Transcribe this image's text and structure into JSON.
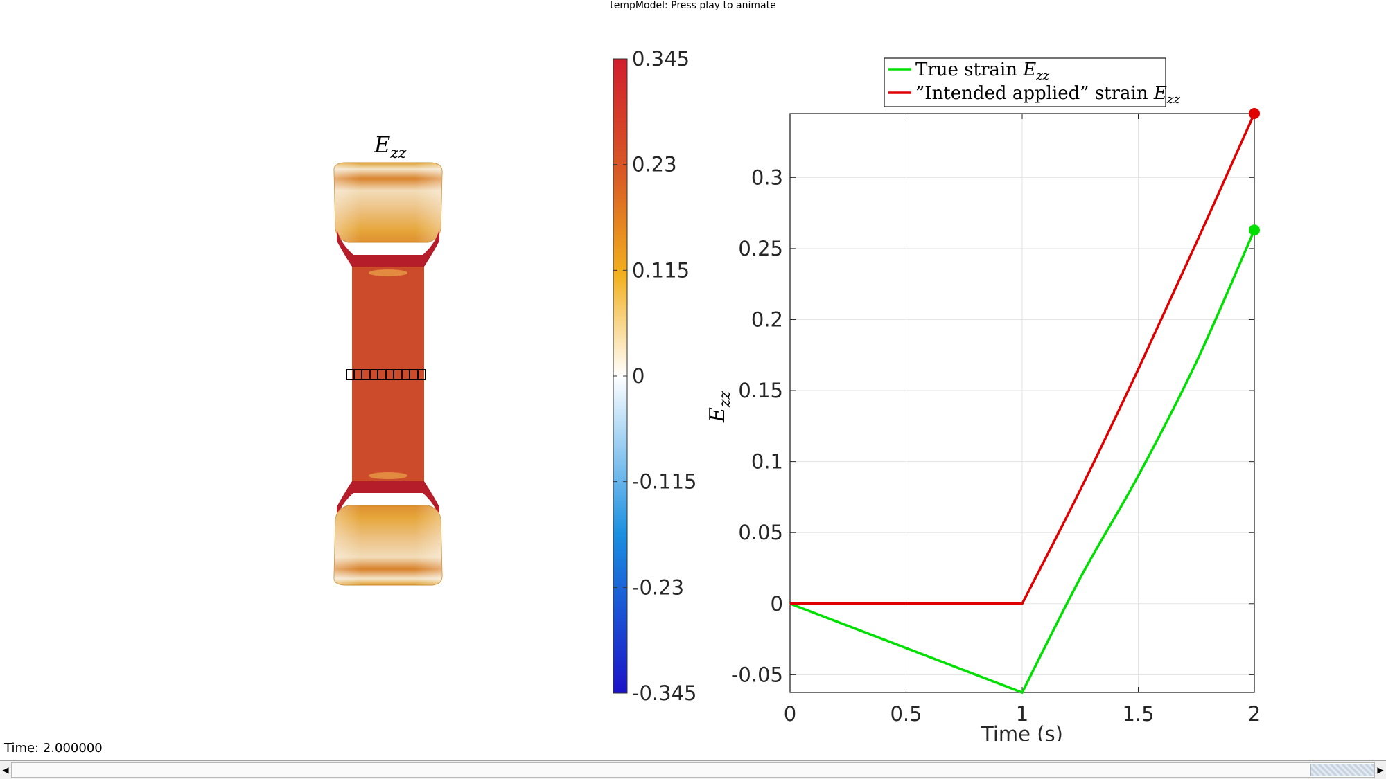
{
  "window": {
    "title": "tempModel: Press play to animate"
  },
  "specimen": {
    "title_main": "E",
    "title_sub": "zz",
    "colors": {
      "grip": "#e6a13a",
      "grip_light": "#f3dcb3",
      "neck": "#cc4a2b",
      "fillet": "#b31c2a",
      "outline": "#000000"
    }
  },
  "colorbar": {
    "ticks": [
      "0.345",
      "0.23",
      "0.115",
      "0",
      "-0.115",
      "-0.23",
      "-0.345"
    ],
    "min": -0.345,
    "max": 0.345,
    "colormap": [
      "#1b12c8",
      "#1a8fe0",
      "#ffffff",
      "#f2b01e",
      "#d85a24",
      "#d11e2d"
    ]
  },
  "plot": {
    "ylabel_main": "E",
    "ylabel_sub": "zz",
    "xlabel": "Time (s)",
    "legend": {
      "entries": [
        {
          "text": "True strain ",
          "math_main": "E",
          "math_sub": "zz",
          "color": "#00e000"
        },
        {
          "text": "”Intended applied” strain ",
          "math_main": "E",
          "math_sub": "zz",
          "color": "#e00000"
        }
      ]
    }
  },
  "chart_data": {
    "type": "line",
    "xlabel": "Time (s)",
    "ylabel": "E_zz",
    "xlim": [
      0,
      2
    ],
    "ylim": [
      -0.0625,
      0.345
    ],
    "xticks": [
      "0",
      "0.5",
      "1",
      "1.5",
      "2"
    ],
    "yticks": [
      "-0.05",
      "0",
      "0.05",
      "0.1",
      "0.15",
      "0.2",
      "0.25",
      "0.3"
    ],
    "grid": true,
    "legend_position": "top-center outside",
    "series": [
      {
        "name": "True strain E_zz",
        "color": "#00e000",
        "x": [
          0,
          1,
          1.25,
          1.5,
          1.75,
          2
        ],
        "y": [
          0,
          -0.0625,
          0.018,
          0.09,
          0.17,
          0.263
        ],
        "endpoint_marker": true
      },
      {
        "name": "”Intended applied” strain E_zz",
        "color": "#e00000",
        "x": [
          0,
          1,
          1.25,
          1.5,
          1.75,
          2
        ],
        "y": [
          0,
          0,
          0.08,
          0.165,
          0.254,
          0.345
        ],
        "endpoint_marker": true
      }
    ]
  },
  "status": {
    "time_text": "Time: 2.000000"
  },
  "scrollbar": {
    "left_arrow": "◀",
    "right_arrow": "▶"
  }
}
